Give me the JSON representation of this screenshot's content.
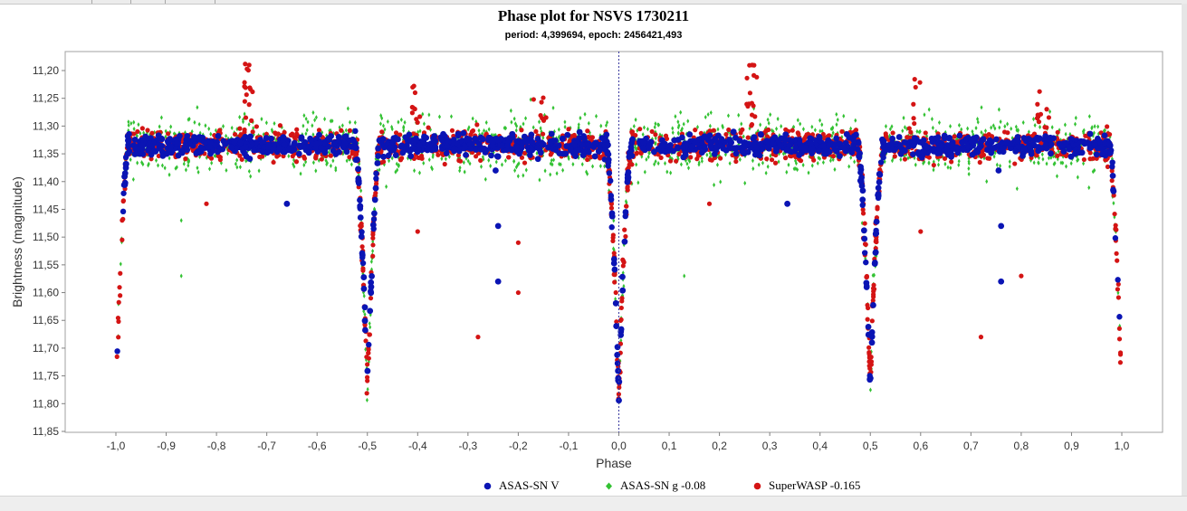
{
  "chart_data": {
    "type": "scatter",
    "title": "Phase plot for NSVS 1730211",
    "subtitle": "period: 4,399694, epoch: 2456421,493",
    "xlabel": "Phase",
    "ylabel": "Brightness (magnitude)",
    "xlim": [
      -1.0,
      1.0
    ],
    "ylim": [
      11.85,
      11.18
    ],
    "y_inverted": true,
    "x_ticks": [
      "-1,0",
      "-0,9",
      "-0,8",
      "-0,7",
      "-0,6",
      "-0,5",
      "-0,4",
      "-0,3",
      "-0,2",
      "-0,1",
      "0,0",
      "0,1",
      "0,2",
      "0,3",
      "0,4",
      "0,5",
      "0,6",
      "0,7",
      "0,8",
      "0,9",
      "1,0"
    ],
    "y_ticks": [
      "11,20",
      "11,25",
      "11,30",
      "11,35",
      "11,40",
      "11,45",
      "11,50",
      "11,55",
      "11,60",
      "11,65",
      "11,70",
      "11,75",
      "11,80",
      "11,85"
    ],
    "zero_line": "dashed vertical at phase 0,0",
    "grid": false,
    "legend_position": "bottom-center",
    "light_curve": {
      "baseline_mag": 11.335,
      "primary_eclipse": {
        "phase": 0.0,
        "depth_mag": 11.78,
        "half_width_phase": 0.025
      },
      "secondary_eclipse": {
        "phase": 0.5,
        "depth_mag": 11.77,
        "half_width_phase": 0.025
      }
    },
    "series": [
      {
        "name": "ASAS-SN V",
        "color": "#0a14b4",
        "marker": "circle"
      },
      {
        "name": "ASAS-SN g -0.08",
        "color": "#33c233",
        "marker": "diamond"
      },
      {
        "name": "SuperWASP -0.165",
        "color": "#d41414",
        "marker": "circle"
      }
    ],
    "outliers": [
      {
        "series": "ASAS-SN V",
        "x": -0.66,
        "y": 11.44
      },
      {
        "series": "ASAS-SN V",
        "x": -0.24,
        "y": 11.48
      },
      {
        "series": "ASAS-SN V",
        "x": -0.24,
        "y": 11.58
      },
      {
        "series": "ASAS-SN V",
        "x": -0.245,
        "y": 11.38
      },
      {
        "series": "ASAS-SN V",
        "x": 0.335,
        "y": 11.44
      },
      {
        "series": "ASAS-SN V",
        "x": 0.76,
        "y": 11.48
      },
      {
        "series": "ASAS-SN V",
        "x": 0.76,
        "y": 11.58
      },
      {
        "series": "ASAS-SN V",
        "x": 0.755,
        "y": 11.38
      },
      {
        "series": "ASAS-SN g -0.08",
        "x": -0.87,
        "y": 11.57
      },
      {
        "series": "ASAS-SN g -0.08",
        "x": -0.87,
        "y": 11.47
      },
      {
        "series": "ASAS-SN g -0.08",
        "x": 0.13,
        "y": 11.57
      },
      {
        "series": "SuperWASP -0.165",
        "x": -0.28,
        "y": 11.68
      },
      {
        "series": "SuperWASP -0.165",
        "x": 0.72,
        "y": 11.68
      },
      {
        "series": "SuperWASP -0.165",
        "x": -0.2,
        "y": 11.6
      },
      {
        "series": "SuperWASP -0.165",
        "x": 0.8,
        "y": 11.57
      },
      {
        "series": "SuperWASP -0.165",
        "x": -0.2,
        "y": 11.51
      },
      {
        "series": "SuperWASP -0.165",
        "x": -0.4,
        "y": 11.49
      },
      {
        "series": "SuperWASP -0.165",
        "x": 0.6,
        "y": 11.49
      },
      {
        "series": "SuperWASP -0.165",
        "x": -0.735,
        "y": 11.19
      },
      {
        "series": "SuperWASP -0.165",
        "x": 0.265,
        "y": 11.19
      },
      {
        "series": "SuperWASP -0.165",
        "x": -0.82,
        "y": 11.44
      },
      {
        "series": "SuperWASP -0.165",
        "x": 0.18,
        "y": 11.44
      },
      {
        "series": "SuperWASP -0.165",
        "x": -0.41,
        "y": 11.23
      },
      {
        "series": "SuperWASP -0.165",
        "x": 0.59,
        "y": 11.23
      }
    ]
  },
  "legend": {
    "items": [
      {
        "label": "ASAS-SN V",
        "color": "#0a14b4"
      },
      {
        "label": "ASAS-SN g -0.08",
        "color": "#33c233"
      },
      {
        "label": "SuperWASP -0.165",
        "color": "#d41414"
      }
    ]
  }
}
